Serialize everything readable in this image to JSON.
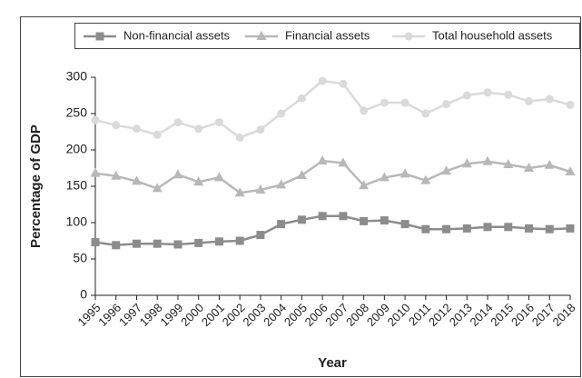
{
  "chart_data": {
    "type": "line",
    "x_label": "Year",
    "y_label": "Percentage of GDP",
    "categories": [
      "1995",
      "1996",
      "1997",
      "1998",
      "1999",
      "2000",
      "2001",
      "2002",
      "2003",
      "2004",
      "2005",
      "2006",
      "2007",
      "2008",
      "2009",
      "2010",
      "2011",
      "2012",
      "2013",
      "2014",
      "2015",
      "2016",
      "2017",
      "2018"
    ],
    "series": [
      {
        "name": "Non-financial assets",
        "color": "#8c8c8c",
        "marker": "square",
        "values": [
          73,
          69,
          71,
          71,
          70,
          72,
          74,
          75,
          83,
          98,
          104,
          109,
          109,
          102,
          103,
          98,
          91,
          91,
          92,
          94,
          94,
          92,
          91,
          92
        ]
      },
      {
        "name": "Financial assets",
        "color": "#b8b8b8",
        "marker": "triangle",
        "values": [
          168,
          164,
          157,
          147,
          166,
          156,
          162,
          141,
          145,
          152,
          165,
          185,
          182,
          151,
          162,
          167,
          158,
          171,
          181,
          184,
          180,
          175,
          179,
          170
        ]
      },
      {
        "name": "Total household assets",
        "color": "#dadada",
        "marker": "circle",
        "values": [
          241,
          234,
          229,
          221,
          238,
          229,
          238,
          217,
          228,
          250,
          271,
          295,
          291,
          254,
          265,
          265,
          250,
          263,
          275,
          279,
          276,
          267,
          270,
          262
        ]
      }
    ],
    "ylim": [
      0,
      300
    ],
    "yticks": [
      0,
      50,
      100,
      150,
      200,
      250,
      300
    ],
    "grid": false,
    "legend": "top"
  }
}
